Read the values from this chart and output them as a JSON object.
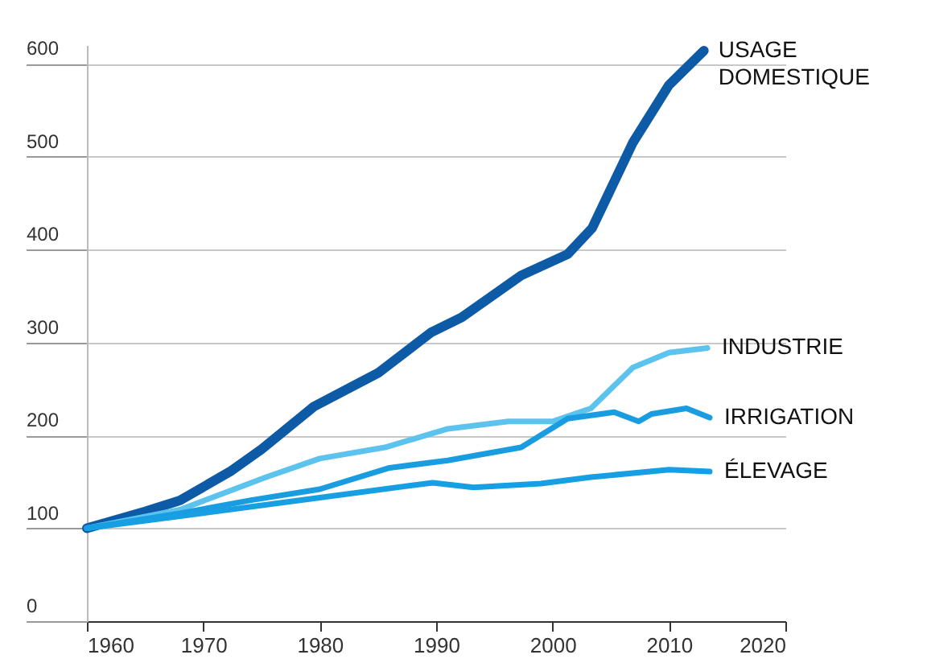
{
  "chart_data": {
    "type": "line",
    "series": [
      {
        "name": "USAGE DOMESTIQUE",
        "color": "#0d5ba6",
        "x": [
          1960,
          1965,
          1968,
          1972.3,
          1975,
          1979.5,
          1985,
          1989.6,
          1992.2,
          1997.3,
          2001.3,
          2003.4,
          2006.9,
          2010,
          2013
        ],
        "values": [
          100,
          118,
          130,
          161,
          185,
          231,
          267,
          311,
          327,
          372,
          395,
          423,
          515,
          577,
          614
        ]
      },
      {
        "name": "INDUSTRIE",
        "color": "#5cc3ef",
        "x": [
          1960,
          1968,
          1975.4,
          1980,
          1985.6,
          1991,
          1996.2,
          2000,
          2003.3,
          2006.9,
          2010,
          2013.3
        ],
        "values": [
          100,
          120,
          155,
          175,
          187,
          207,
          215,
          215,
          229,
          273,
          289,
          294
        ]
      },
      {
        "name": "IRRIGATION",
        "color": "#1a9de0",
        "x": [
          1960,
          1968,
          1974,
          1980,
          1986,
          1991,
          1997.3,
          2001.3,
          2005.3,
          2007.4,
          2008.5,
          2011.5,
          2013.5
        ],
        "values": [
          100,
          116,
          130,
          142,
          165,
          173,
          187,
          218,
          225,
          215,
          223,
          229,
          219
        ]
      },
      {
        "name": "ÉLEVAGE",
        "color": "#169fe2",
        "x": [
          1960,
          1968,
          1980,
          1989.7,
          1993.2,
          1999,
          2003.3,
          2010,
          2013.5
        ],
        "values": [
          100,
          113,
          133,
          149,
          144,
          148,
          155,
          163,
          161
        ]
      }
    ],
    "xlim": [
      1960,
      2020
    ],
    "xticks": [
      1960,
      1970,
      1980,
      1990,
      2000,
      2010,
      2020
    ],
    "ylim": [
      0,
      620
    ],
    "yticks": [
      0,
      100,
      200,
      300,
      400,
      500,
      600
    ],
    "grid": "y",
    "marker": "none",
    "line_style": "solid"
  }
}
